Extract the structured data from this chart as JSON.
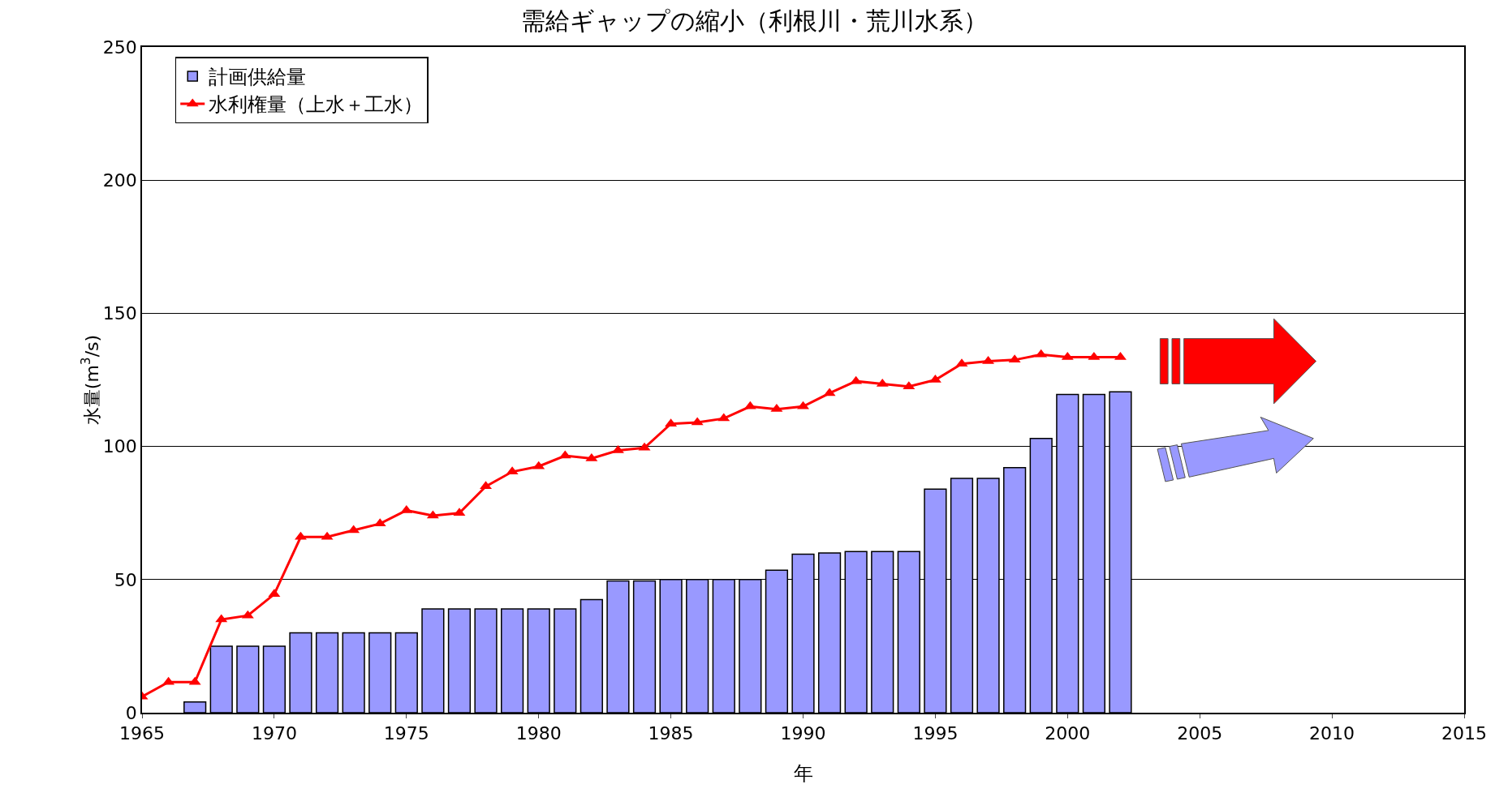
{
  "chart_data": {
    "type": "bar",
    "title": "需給ギャップの縮小（利根川・荒川水系）",
    "xlabel": "年",
    "ylabel": "水量(m$^{3}$/s)",
    "xlim": [
      1965,
      2015
    ],
    "xticks": [
      1965,
      1970,
      1975,
      1980,
      1985,
      1990,
      1995,
      2000,
      2005,
      2010,
      2015
    ],
    "ylim": [
      0,
      250
    ],
    "yticks": [
      0,
      50,
      100,
      150,
      200,
      250
    ],
    "grid": "y",
    "legend": "top left",
    "series": [
      {
        "name": "計画供給量",
        "color": "#9999ff",
        "x": [
          1967,
          1968,
          1969,
          1970,
          1971,
          1972,
          1973,
          1974,
          1975,
          1976,
          1977,
          1978,
          1979,
          1980,
          1981,
          1982,
          1983,
          1984,
          1985,
          1986,
          1987,
          1988,
          1989,
          1990,
          1991,
          1992,
          1993,
          1994,
          1995,
          1996,
          1997,
          1998,
          1999,
          2000,
          2001,
          2002
        ],
        "values": [
          4,
          25,
          25,
          25,
          30,
          30,
          30,
          30,
          30,
          39,
          39,
          39,
          39,
          39,
          39,
          42.5,
          49.5,
          49.5,
          50,
          50,
          50,
          50,
          53.5,
          59.5,
          60,
          60.5,
          60.5,
          60.5,
          84,
          88,
          88,
          92,
          103,
          119.5,
          119.5,
          120.5
        ]
      },
      {
        "name": "水利権量（上水＋工水）",
        "type": "line",
        "color": "#ff0000",
        "marker": "triangle",
        "x": [
          1965,
          1966,
          1967,
          1968,
          1969,
          1970,
          1971,
          1972,
          1973,
          1974,
          1975,
          1976,
          1977,
          1978,
          1979,
          1980,
          1981,
          1982,
          1983,
          1984,
          1985,
          1986,
          1987,
          1988,
          1989,
          1990,
          1991,
          1992,
          1993,
          1994,
          1995,
          1996,
          1997,
          1998,
          1999,
          2000,
          2001,
          2002
        ],
        "values": [
          6,
          11.5,
          11.5,
          35,
          36.5,
          44.5,
          66,
          66,
          68.5,
          71,
          76,
          74,
          75,
          85,
          90.5,
          92.5,
          96.5,
          95.5,
          98.5,
          99.5,
          108.5,
          109,
          110.5,
          115,
          114,
          115,
          120,
          124.5,
          123.5,
          122.5,
          125,
          131,
          132,
          132.5,
          134.5,
          133.5,
          133.5,
          133.5
        ]
      }
    ]
  }
}
